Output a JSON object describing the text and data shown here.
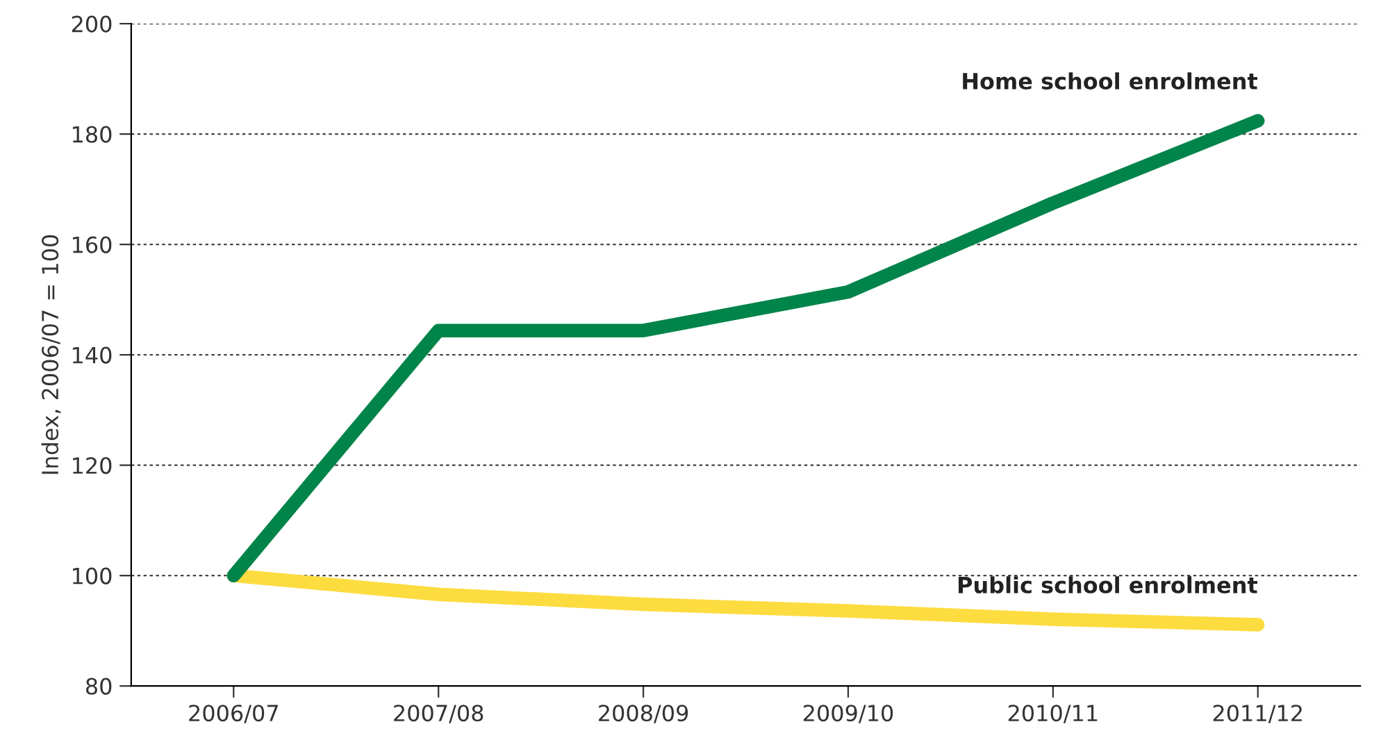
{
  "chart_data": {
    "type": "line",
    "ylabel": "Index, 2006/07 = 100",
    "categories": [
      "2006/07",
      "2007/08",
      "2008/09",
      "2009/10",
      "2010/11",
      "2011/12"
    ],
    "series": [
      {
        "name": "Home school enrolment",
        "color": "#00844a",
        "values": [
          100,
          144.4,
          144.4,
          151.4,
          167.5,
          182.4
        ]
      },
      {
        "name": "Public school enrolment",
        "color": "#fddc40",
        "values": [
          100,
          96.6,
          94.8,
          93.6,
          92.1,
          91.1
        ]
      }
    ],
    "ylim": [
      80,
      200
    ],
    "yticks": [
      80,
      100,
      120,
      140,
      160,
      180,
      200
    ],
    "grid": "y",
    "legend": false,
    "marker": "none",
    "line_style": "solid"
  }
}
